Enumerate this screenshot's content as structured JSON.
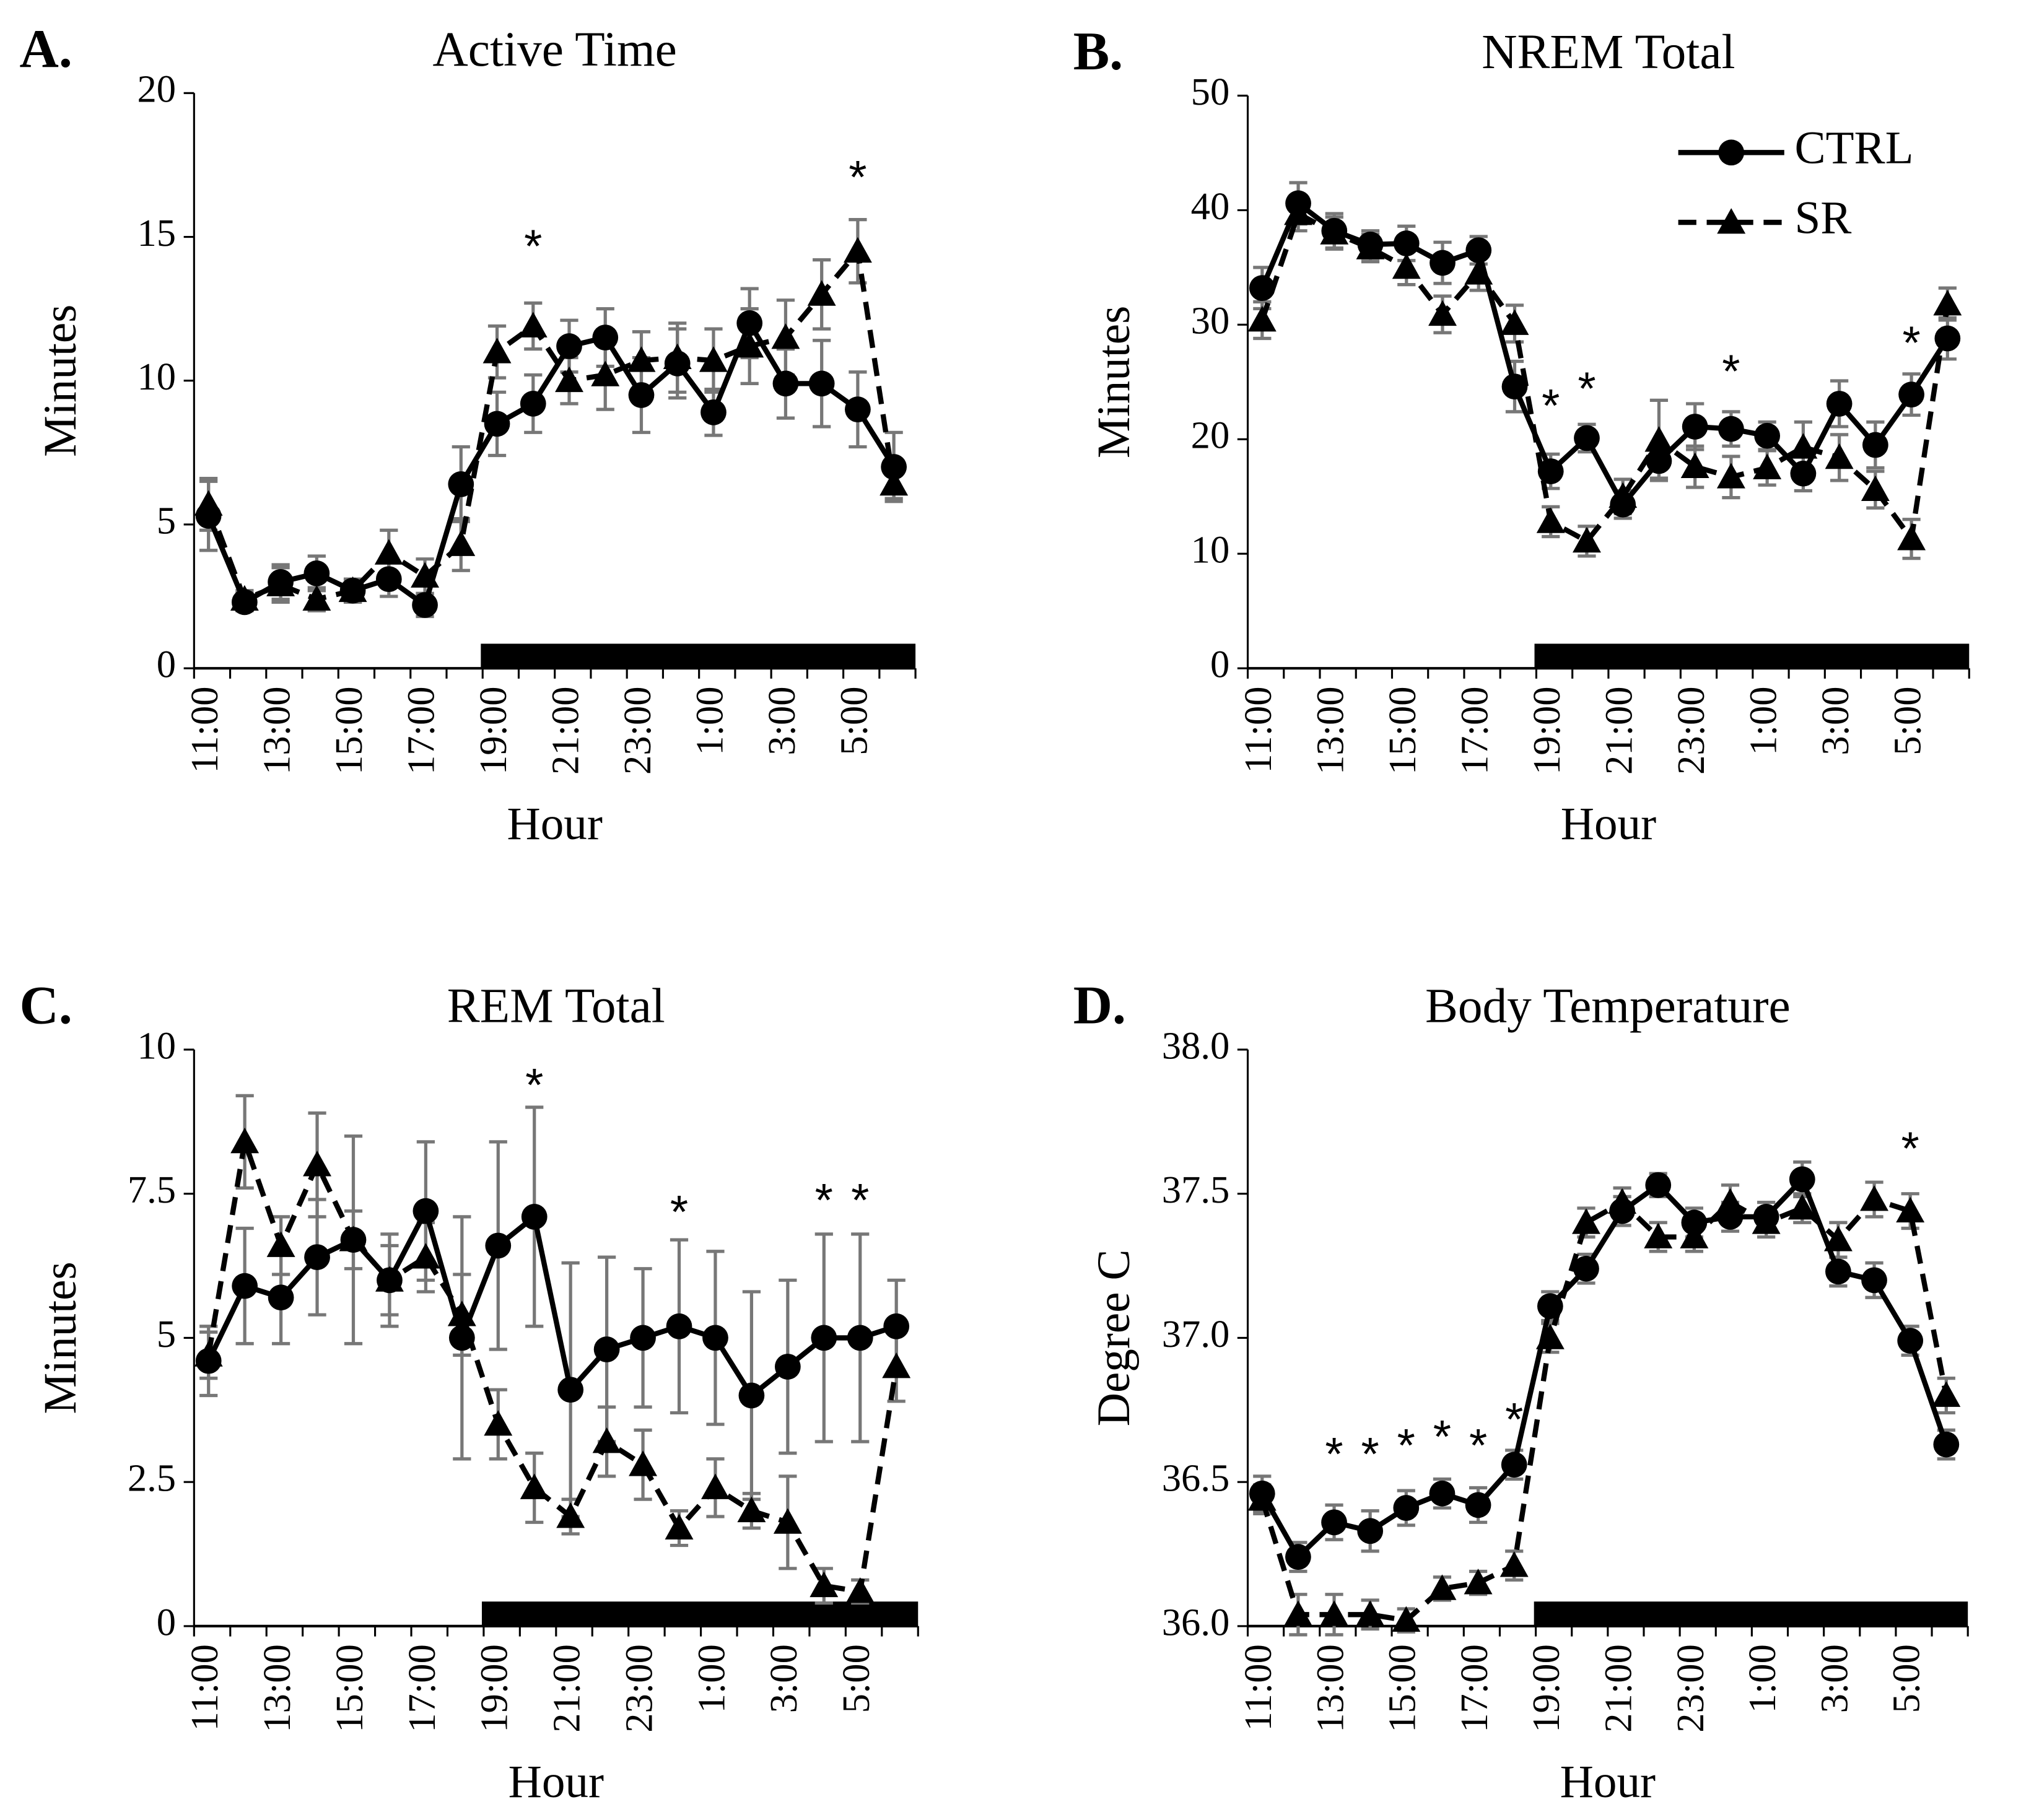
{
  "chart_data": [
    {
      "type": "line",
      "panel": "A.",
      "title": "Active Time",
      "xlabel": "Hour",
      "ylabel": "Minutes",
      "categories": [
        "11:00",
        null,
        "13:00",
        null,
        "15:00",
        null,
        "17:00",
        null,
        "19:00",
        null,
        "21:00",
        null,
        "23:00",
        null,
        "1:00",
        null,
        "3:00",
        null,
        "5:00",
        null
      ],
      "ylim": [
        0,
        20
      ],
      "yticks": [
        0,
        5,
        10,
        15,
        20
      ],
      "series": [
        {
          "name": "CTRL",
          "color": "#000000",
          "marker": "circle",
          "linestyle": "solid",
          "values": [
            5.3,
            2.3,
            3.0,
            3.3,
            2.7,
            3.1,
            2.2,
            6.4,
            8.5,
            9.2,
            11.2,
            11.5,
            9.5,
            10.6,
            8.9,
            12.0,
            9.9,
            9.9,
            9.0,
            7.0
          ],
          "errors": [
            1.2,
            0.3,
            0.6,
            0.6,
            0.4,
            0.6,
            0.4,
            1.3,
            1.1,
            1.0,
            0.9,
            1.0,
            1.3,
            1.2,
            0.8,
            1.2,
            1.2,
            1.5,
            1.3,
            1.2
          ]
        },
        {
          "name": "SR",
          "color": "#000000",
          "marker": "triangle",
          "linestyle": "dashed",
          "values": [
            5.7,
            2.4,
            2.9,
            2.4,
            2.7,
            4.0,
            3.2,
            4.3,
            11.0,
            11.9,
            10.0,
            10.2,
            10.7,
            10.8,
            10.7,
            11.2,
            11.5,
            13.0,
            14.5,
            6.4
          ],
          "errors": [
            0.9,
            0.3,
            0.6,
            0.4,
            0.4,
            0.8,
            0.6,
            0.9,
            0.9,
            0.8,
            0.8,
            1.2,
            1.0,
            1.2,
            1.1,
            1.3,
            1.3,
            1.2,
            1.1,
            0.5
          ]
        }
      ],
      "annotations": [
        {
          "text": "*",
          "x": 9,
          "y": 14.9
        },
        {
          "text": "*",
          "x": 18,
          "y": 17.3
        }
      ]
    },
    {
      "type": "line",
      "panel": "B.",
      "title": "NREM Total",
      "xlabel": "Hour",
      "ylabel": "Minutes",
      "legend": "upper right",
      "categories": [
        "11:00",
        null,
        "13:00",
        null,
        "15:00",
        null,
        "17:00",
        null,
        "19:00",
        null,
        "21:00",
        null,
        "23:00",
        null,
        "1:00",
        null,
        "3:00",
        null,
        "5:00",
        null
      ],
      "ylim": [
        0,
        50
      ],
      "yticks": [
        0,
        10,
        20,
        30,
        40,
        50
      ],
      "series": [
        {
          "name": "CTRL",
          "color": "#000000",
          "marker": "circle",
          "linestyle": "solid",
          "values": [
            33.2,
            40.6,
            38.2,
            37.0,
            37.1,
            35.4,
            36.5,
            24.6,
            17.2,
            20.1,
            14.3,
            18.1,
            21.1,
            20.9,
            20.3,
            17.0,
            23.1,
            19.5,
            23.9,
            28.8
          ],
          "errors": [
            1.8,
            1.8,
            1.5,
            1.2,
            1.5,
            1.8,
            1.2,
            2.2,
            1.5,
            1.2,
            1.2,
            1.5,
            2.0,
            1.5,
            1.2,
            1.5,
            2.0,
            2.0,
            1.8,
            1.8
          ]
        },
        {
          "name": "SR",
          "color": "#000000",
          "marker": "triangle",
          "linestyle": "dashed",
          "values": [
            30.4,
            39.7,
            38.0,
            36.7,
            35.0,
            30.9,
            34.5,
            30.1,
            12.8,
            11.1,
            15.0,
            19.9,
            17.6,
            16.7,
            17.5,
            19.3,
            18.4,
            15.6,
            11.3,
            31.8
          ],
          "errors": [
            1.6,
            1.5,
            1.4,
            1.2,
            1.5,
            1.6,
            1.5,
            1.6,
            1.3,
            1.3,
            1.5,
            3.5,
            1.8,
            1.8,
            1.5,
            2.2,
            2.0,
            1.6,
            1.7,
            1.4
          ]
        }
      ],
      "annotations": [
        {
          "text": "*",
          "x": 8,
          "y": 23.5
        },
        {
          "text": "*",
          "x": 9,
          "y": 25.0
        },
        {
          "text": "*",
          "x": 13,
          "y": 26.5
        },
        {
          "text": "*",
          "x": 18,
          "y": 29.0
        }
      ]
    },
    {
      "type": "line",
      "panel": "C.",
      "title": "REM Total",
      "xlabel": "Hour",
      "ylabel": "Minutes",
      "categories": [
        "11:00",
        null,
        "13:00",
        null,
        "15:00",
        null,
        "17:00",
        null,
        "19:00",
        null,
        "21:00",
        null,
        "23:00",
        null,
        "1:00",
        null,
        "3:00",
        null,
        "5:00",
        null
      ],
      "ylim": [
        0,
        10
      ],
      "yticks": [
        0,
        2.5,
        5,
        7.5,
        10
      ],
      "series": [
        {
          "name": "CTRL",
          "color": "#000000",
          "marker": "circle",
          "linestyle": "solid",
          "values": [
            4.6,
            5.9,
            5.7,
            6.4,
            6.7,
            6.0,
            7.2,
            5.0,
            6.6,
            7.1,
            4.1,
            4.8,
            5.0,
            5.2,
            5.0,
            4.0,
            4.5,
            5.0,
            5.0,
            5.2
          ],
          "errors": [
            0.6,
            1.0,
            0.8,
            1.0,
            1.8,
            0.8,
            1.2,
            2.1,
            1.8,
            1.9,
            2.2,
            1.6,
            1.2,
            1.5,
            1.5,
            1.8,
            1.5,
            1.8,
            1.8,
            0.8
          ]
        },
        {
          "name": "SR",
          "color": "#000000",
          "marker": "triangle",
          "linestyle": "dashed",
          "values": [
            4.7,
            8.4,
            6.6,
            8.0,
            6.7,
            6.0,
            6.4,
            5.4,
            3.5,
            2.4,
            1.9,
            3.2,
            2.8,
            1.7,
            2.4,
            2.0,
            1.8,
            0.7,
            0.6,
            4.5
          ],
          "errors": [
            0.4,
            0.8,
            0.5,
            0.9,
            0.5,
            0.6,
            0.6,
            0.7,
            0.6,
            0.6,
            0.3,
            0.6,
            0.6,
            0.3,
            0.5,
            0.3,
            0.8,
            0.3,
            0.2,
            0.6
          ]
        }
      ],
      "annotations": [
        {
          "text": "*",
          "x": 9,
          "y": 9.5
        },
        {
          "text": "*",
          "x": 13,
          "y": 7.3
        },
        {
          "text": "*",
          "x": 17,
          "y": 7.5
        },
        {
          "text": "*",
          "x": 18,
          "y": 7.5
        }
      ]
    },
    {
      "type": "line",
      "panel": "D.",
      "title": "Body Temperature",
      "xlabel": "Hour",
      "ylabel": "Degree C",
      "categories": [
        "11:00",
        null,
        "13:00",
        null,
        "15:00",
        null,
        "17:00",
        null,
        "19:00",
        null,
        "21:00",
        null,
        "23:00",
        null,
        "1:00",
        null,
        "3:00",
        null,
        "5:00",
        null
      ],
      "ylim": [
        36,
        38
      ],
      "yticks": [
        {
          "value": 36,
          "label": "36.0"
        },
        36.5,
        {
          "value": 37,
          "label": "37.0"
        },
        37.5,
        {
          "value": 38,
          "label": "38.0"
        }
      ],
      "series": [
        {
          "name": "CTRL",
          "color": "#000000",
          "marker": "circle",
          "linestyle": "solid",
          "values": [
            36.46,
            36.24,
            36.36,
            36.33,
            36.41,
            36.46,
            36.42,
            36.56,
            37.11,
            37.24,
            37.44,
            37.53,
            37.4,
            37.42,
            37.42,
            37.55,
            37.23,
            37.2,
            36.99,
            36.63
          ],
          "errors": [
            0.06,
            0.05,
            0.06,
            0.07,
            0.06,
            0.05,
            0.06,
            0.05,
            0.05,
            0.05,
            0.05,
            0.04,
            0.05,
            0.05,
            0.05,
            0.06,
            0.05,
            0.06,
            0.05,
            0.05
          ]
        },
        {
          "name": "SR",
          "color": "#000000",
          "marker": "triangle",
          "linestyle": "dashed",
          "values": [
            36.44,
            36.04,
            36.04,
            36.04,
            36.02,
            36.13,
            36.15,
            36.21,
            37.0,
            37.4,
            37.47,
            37.35,
            37.35,
            37.47,
            37.4,
            37.45,
            37.34,
            37.48,
            37.44,
            36.8
          ],
          "errors": [
            0.05,
            0.07,
            0.07,
            0.05,
            0.04,
            0.04,
            0.04,
            0.05,
            0.05,
            0.05,
            0.05,
            0.05,
            0.05,
            0.06,
            0.05,
            0.05,
            0.06,
            0.06,
            0.06,
            0.06
          ]
        }
      ],
      "annotations": [
        {
          "text": "*",
          "x": 2,
          "y": 36.62
        },
        {
          "text": "*",
          "x": 3,
          "y": 36.62
        },
        {
          "text": "*",
          "x": 4,
          "y": 36.65
        },
        {
          "text": "*",
          "x": 5,
          "y": 36.68
        },
        {
          "text": "*",
          "x": 6,
          "y": 36.65
        },
        {
          "text": "*",
          "x": 7,
          "y": 36.74
        },
        {
          "text": "*",
          "x": 18,
          "y": 37.68
        }
      ]
    }
  ]
}
